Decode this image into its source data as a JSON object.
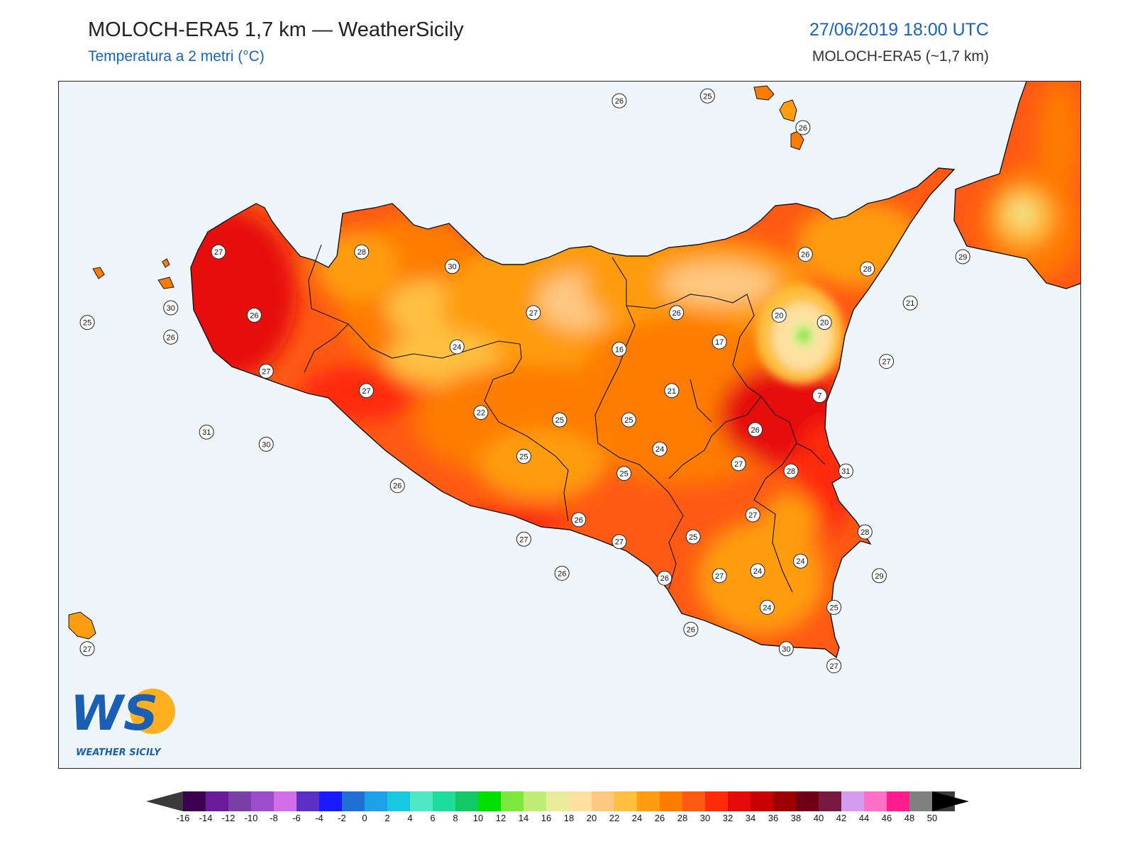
{
  "header": {
    "title": "MOLOCH-ERA5 1,7 km — WeatherSicily",
    "subtitle": "Temperatura a 2 metri (°C)",
    "datetime": "27/06/2019 18:00 UTC",
    "model": "MOLOCH-ERA5 (~1,7 km)"
  },
  "map": {
    "background_color": "#eef6fb",
    "land_base_color": "#ff5a14",
    "labels": [
      {
        "v": "26",
        "lon": 14.18,
        "lat": 38.8
      },
      {
        "v": "25",
        "lon": 14.55,
        "lat": 38.82
      },
      {
        "v": "26",
        "lon": 14.95,
        "lat": 38.69
      },
      {
        "v": "27",
        "lon": 12.5,
        "lat": 38.18
      },
      {
        "v": "28",
        "lon": 13.1,
        "lat": 38.18
      },
      {
        "v": "30",
        "lon": 13.48,
        "lat": 38.12
      },
      {
        "v": "30",
        "lon": 12.3,
        "lat": 37.95
      },
      {
        "v": "26",
        "lon": 12.65,
        "lat": 37.92
      },
      {
        "v": "25",
        "lon": 11.95,
        "lat": 37.89
      },
      {
        "v": "26",
        "lon": 12.3,
        "lat": 37.83
      },
      {
        "v": "27",
        "lon": 13.82,
        "lat": 37.93
      },
      {
        "v": "24",
        "lon": 13.5,
        "lat": 37.79
      },
      {
        "v": "27",
        "lon": 12.7,
        "lat": 37.69
      },
      {
        "v": "27",
        "lon": 13.12,
        "lat": 37.61
      },
      {
        "v": "16",
        "lon": 14.18,
        "lat": 37.78
      },
      {
        "v": "26",
        "lon": 14.42,
        "lat": 37.93
      },
      {
        "v": "17",
        "lon": 14.6,
        "lat": 37.81
      },
      {
        "v": "20",
        "lon": 14.85,
        "lat": 37.92
      },
      {
        "v": "20",
        "lon": 15.04,
        "lat": 37.89
      },
      {
        "v": "26",
        "lon": 14.96,
        "lat": 38.17
      },
      {
        "v": "28",
        "lon": 15.22,
        "lat": 38.11
      },
      {
        "v": "29",
        "lon": 15.62,
        "lat": 38.16
      },
      {
        "v": "21",
        "lon": 15.4,
        "lat": 37.97
      },
      {
        "v": "27",
        "lon": 15.3,
        "lat": 37.73
      },
      {
        "v": "7",
        "lon": 15.02,
        "lat": 37.59
      },
      {
        "v": "21",
        "lon": 14.4,
        "lat": 37.61
      },
      {
        "v": "22",
        "lon": 13.6,
        "lat": 37.52
      },
      {
        "v": "25",
        "lon": 13.93,
        "lat": 37.49
      },
      {
        "v": "25",
        "lon": 14.22,
        "lat": 37.49
      },
      {
        "v": "26",
        "lon": 14.75,
        "lat": 37.45
      },
      {
        "v": "24",
        "lon": 14.35,
        "lat": 37.37
      },
      {
        "v": "25",
        "lon": 13.78,
        "lat": 37.34
      },
      {
        "v": "27",
        "lon": 14.68,
        "lat": 37.31
      },
      {
        "v": "28",
        "lon": 14.9,
        "lat": 37.28
      },
      {
        "v": "31",
        "lon": 15.13,
        "lat": 37.28
      },
      {
        "v": "25",
        "lon": 14.2,
        "lat": 37.27
      },
      {
        "v": "30",
        "lon": 12.7,
        "lat": 37.39
      },
      {
        "v": "31",
        "lon": 12.45,
        "lat": 37.44
      },
      {
        "v": "26",
        "lon": 13.25,
        "lat": 37.22
      },
      {
        "v": "26",
        "lon": 14.01,
        "lat": 37.08
      },
      {
        "v": "27",
        "lon": 14.74,
        "lat": 37.1
      },
      {
        "v": "25",
        "lon": 14.49,
        "lat": 37.01
      },
      {
        "v": "27",
        "lon": 13.78,
        "lat": 37.0
      },
      {
        "v": "27",
        "lon": 14.18,
        "lat": 36.99
      },
      {
        "v": "28",
        "lon": 15.21,
        "lat": 37.03
      },
      {
        "v": "24",
        "lon": 14.94,
        "lat": 36.91
      },
      {
        "v": "24",
        "lon": 14.76,
        "lat": 36.87
      },
      {
        "v": "26",
        "lon": 13.94,
        "lat": 36.86
      },
      {
        "v": "26",
        "lon": 14.37,
        "lat": 36.84
      },
      {
        "v": "27",
        "lon": 14.6,
        "lat": 36.85
      },
      {
        "v": "29",
        "lon": 15.27,
        "lat": 36.85
      },
      {
        "v": "24",
        "lon": 14.8,
        "lat": 36.72
      },
      {
        "v": "25",
        "lon": 15.08,
        "lat": 36.72
      },
      {
        "v": "26",
        "lon": 14.48,
        "lat": 36.63
      },
      {
        "v": "30",
        "lon": 14.88,
        "lat": 36.55
      },
      {
        "v": "27",
        "lon": 15.08,
        "lat": 36.48
      },
      {
        "v": "27",
        "lon": 11.95,
        "lat": 36.55
      }
    ]
  },
  "legend": {
    "title": "",
    "stops": [
      "-16",
      "-14",
      "-12",
      "-10",
      "-8",
      "-6",
      "-4",
      "-2",
      "0",
      "2",
      "4",
      "6",
      "8",
      "10",
      "12",
      "14",
      "16",
      "18",
      "20",
      "22",
      "24",
      "26",
      "28",
      "30",
      "32",
      "34",
      "36",
      "38",
      "40",
      "42",
      "44",
      "46",
      "48",
      "50"
    ],
    "colors": [
      "#3d0050",
      "#6a1b9a",
      "#7b3fa8",
      "#9c4dcc",
      "#d16ee8",
      "#5c2fc4",
      "#1a1aff",
      "#1f6fd6",
      "#1ea0e6",
      "#16c8e0",
      "#4fe8c4",
      "#1edc9c",
      "#14c864",
      "#00e000",
      "#7ce83c",
      "#c0ec78",
      "#e8ec98",
      "#ffe0a0",
      "#ffc880",
      "#ffc040",
      "#ff9c10",
      "#ff7c00",
      "#ff5a14",
      "#ff2a08",
      "#e60a0a",
      "#c80000",
      "#9c0000",
      "#700018",
      "#781a40",
      "#d49cf0",
      "#ff70c8",
      "#ff1c8c",
      "#808080",
      "#3a3a3a"
    ]
  },
  "logo": {
    "letters": "WS",
    "caption": "WEATHER SICILY"
  }
}
